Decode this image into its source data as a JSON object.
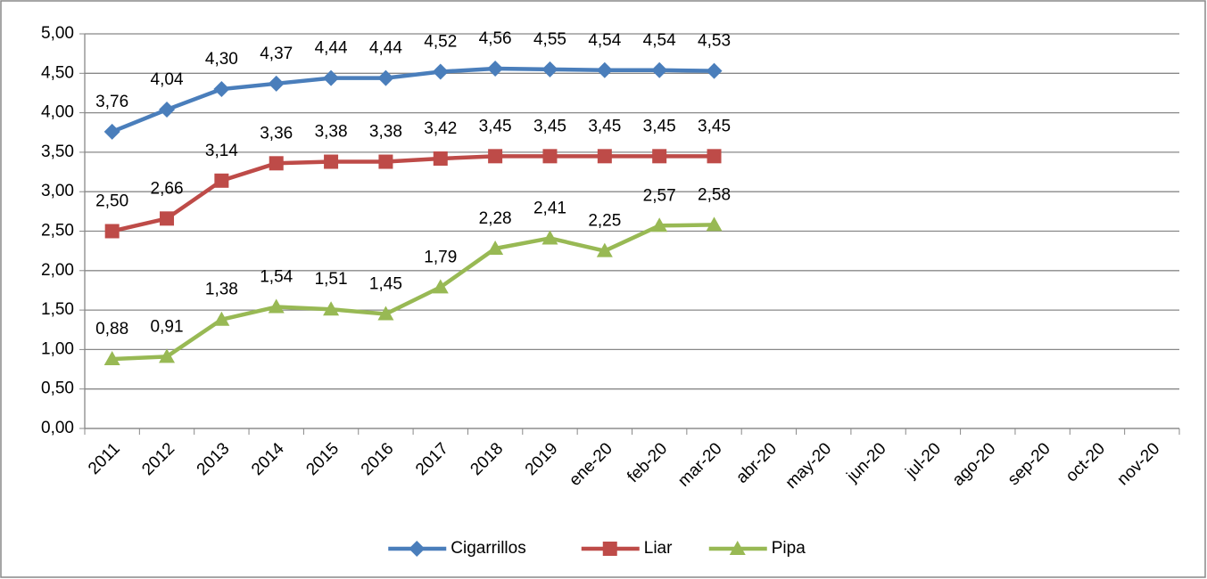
{
  "chart_data": {
    "type": "line",
    "categories": [
      "2011",
      "2012",
      "2013",
      "2014",
      "2015",
      "2016",
      "2017",
      "2018",
      "2019",
      "ene-20",
      "feb-20",
      "mar-20",
      "abr-20",
      "may-20",
      "jun-20",
      "jul-20",
      "ago-20",
      "sep-20",
      "oct-20",
      "nov-20"
    ],
    "series": [
      {
        "name": "Cigarrillos",
        "color": "#4a7ebb",
        "marker": "diamond",
        "values": [
          3.76,
          4.04,
          4.3,
          4.37,
          4.44,
          4.44,
          4.52,
          4.56,
          4.55,
          4.54,
          4.54,
          4.53,
          null,
          null,
          null,
          null,
          null,
          null,
          null,
          null
        ],
        "value_labels": [
          "3,76",
          "4,04",
          "4,30",
          "4,37",
          "4,44",
          "4,44",
          "4,52",
          "4,56",
          "4,55",
          "4,54",
          "4,54",
          "4,53",
          null,
          null,
          null,
          null,
          null,
          null,
          null,
          null
        ]
      },
      {
        "name": "Liar",
        "color": "#be4b48",
        "marker": "square",
        "values": [
          2.5,
          2.66,
          3.14,
          3.36,
          3.38,
          3.38,
          3.42,
          3.45,
          3.45,
          3.45,
          3.45,
          3.45,
          null,
          null,
          null,
          null,
          null,
          null,
          null,
          null
        ],
        "value_labels": [
          "2,50",
          "2,66",
          "3,14",
          "3,36",
          "3,38",
          "3,38",
          "3,42",
          "3,45",
          "3,45",
          "3,45",
          "3,45",
          "3,45",
          null,
          null,
          null,
          null,
          null,
          null,
          null,
          null
        ]
      },
      {
        "name": "Pipa",
        "color": "#98b954",
        "marker": "triangle",
        "values": [
          0.88,
          0.91,
          1.38,
          1.54,
          1.51,
          1.45,
          1.79,
          2.28,
          2.41,
          2.25,
          2.57,
          2.58,
          null,
          null,
          null,
          null,
          null,
          null,
          null,
          null
        ],
        "value_labels": [
          "0,88",
          "0,91",
          "1,38",
          "1,54",
          "1,51",
          "1,45",
          "1,79",
          "2,28",
          "2,41",
          "2,25",
          "2,57",
          "2,58",
          null,
          null,
          null,
          null,
          null,
          null,
          null,
          null
        ]
      }
    ],
    "ylim": [
      0,
      5
    ],
    "yticks": [
      {
        "value": 0,
        "label": "0,00"
      },
      {
        "value": 0.5,
        "label": "0,50"
      },
      {
        "value": 1,
        "label": "1,00"
      },
      {
        "value": 1.5,
        "label": "1,50"
      },
      {
        "value": 2,
        "label": "2,00"
      },
      {
        "value": 2.5,
        "label": "2,50"
      },
      {
        "value": 3,
        "label": "3,00"
      },
      {
        "value": 3.5,
        "label": "3,50"
      },
      {
        "value": 4,
        "label": "4,00"
      },
      {
        "value": 4.5,
        "label": "4,50"
      },
      {
        "value": 5,
        "label": "5,00"
      }
    ],
    "grid": true,
    "legend": "bottom"
  }
}
